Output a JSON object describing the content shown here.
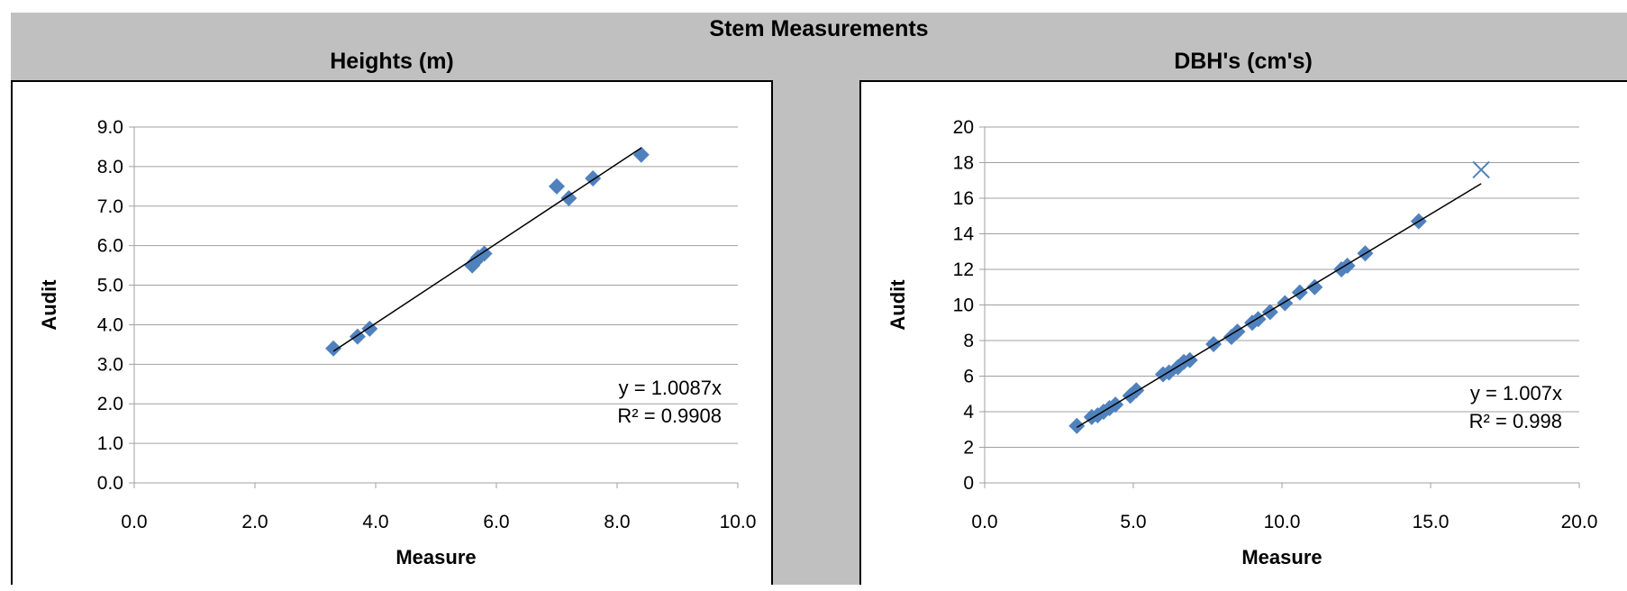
{
  "main_title": "Stem Measurements",
  "colors": {
    "marker": "#4f81bd",
    "frame": "#c0c0c0",
    "gridline": "#a0a0a0",
    "trendline": "#000000"
  },
  "chart_data": [
    {
      "type": "scatter",
      "title": "Heights (m)",
      "xlabel": "Measure",
      "ylabel": "Audit",
      "xlim": [
        0,
        10
      ],
      "ylim": [
        0,
        9
      ],
      "x_ticks": [
        "0.0",
        "2.0",
        "4.0",
        "6.0",
        "8.0",
        "10.0"
      ],
      "y_ticks": [
        "0.0",
        "1.0",
        "2.0",
        "3.0",
        "4.0",
        "5.0",
        "6.0",
        "7.0",
        "8.0",
        "9.0"
      ],
      "grid": true,
      "legend": "none",
      "points": [
        {
          "x": 3.3,
          "y": 3.4
        },
        {
          "x": 3.7,
          "y": 3.7
        },
        {
          "x": 3.9,
          "y": 3.9
        },
        {
          "x": 5.6,
          "y": 5.5
        },
        {
          "x": 5.65,
          "y": 5.6
        },
        {
          "x": 5.7,
          "y": 5.7
        },
        {
          "x": 5.8,
          "y": 5.8
        },
        {
          "x": 7.0,
          "y": 7.5
        },
        {
          "x": 7.2,
          "y": 7.2
        },
        {
          "x": 7.6,
          "y": 7.7
        },
        {
          "x": 8.4,
          "y": 8.3
        }
      ],
      "trendline": {
        "slope": 1.0087,
        "x_range": [
          3.3,
          8.4
        ],
        "equation": "y = 1.0087x",
        "r2": "R² = 0.9908"
      }
    },
    {
      "type": "scatter",
      "title": "DBH's (cm's)",
      "xlabel": "Measure",
      "ylabel": "Audit",
      "xlim": [
        0,
        20
      ],
      "ylim": [
        0,
        20
      ],
      "x_ticks": [
        "0.0",
        "5.0",
        "10.0",
        "15.0",
        "20.0"
      ],
      "y_ticks": [
        "0",
        "2",
        "4",
        "6",
        "8",
        "10",
        "12",
        "14",
        "16",
        "18",
        "20"
      ],
      "grid": true,
      "legend": "none",
      "points": [
        {
          "x": 3.1,
          "y": 3.2
        },
        {
          "x": 3.6,
          "y": 3.7
        },
        {
          "x": 3.8,
          "y": 3.8
        },
        {
          "x": 4.0,
          "y": 4.0
        },
        {
          "x": 4.2,
          "y": 4.2
        },
        {
          "x": 4.4,
          "y": 4.4
        },
        {
          "x": 4.9,
          "y": 4.9
        },
        {
          "x": 5.1,
          "y": 5.2
        },
        {
          "x": 6.0,
          "y": 6.1
        },
        {
          "x": 6.2,
          "y": 6.2
        },
        {
          "x": 6.5,
          "y": 6.5
        },
        {
          "x": 6.7,
          "y": 6.8
        },
        {
          "x": 6.9,
          "y": 6.9
        },
        {
          "x": 7.7,
          "y": 7.8
        },
        {
          "x": 8.3,
          "y": 8.2
        },
        {
          "x": 8.5,
          "y": 8.5
        },
        {
          "x": 9.0,
          "y": 9.0
        },
        {
          "x": 9.2,
          "y": 9.2
        },
        {
          "x": 9.6,
          "y": 9.6
        },
        {
          "x": 10.1,
          "y": 10.1
        },
        {
          "x": 10.6,
          "y": 10.7
        },
        {
          "x": 11.1,
          "y": 11.0
        },
        {
          "x": 12.0,
          "y": 12.0
        },
        {
          "x": 12.2,
          "y": 12.2
        },
        {
          "x": 12.8,
          "y": 12.9
        },
        {
          "x": 14.6,
          "y": 14.7
        }
      ],
      "outlier": {
        "x": 16.7,
        "y": 17.6
      },
      "trendline": {
        "slope": 1.007,
        "x_range": [
          3.1,
          16.7
        ],
        "equation": "y = 1.007x",
        "r2": "R² = 0.998"
      }
    }
  ]
}
